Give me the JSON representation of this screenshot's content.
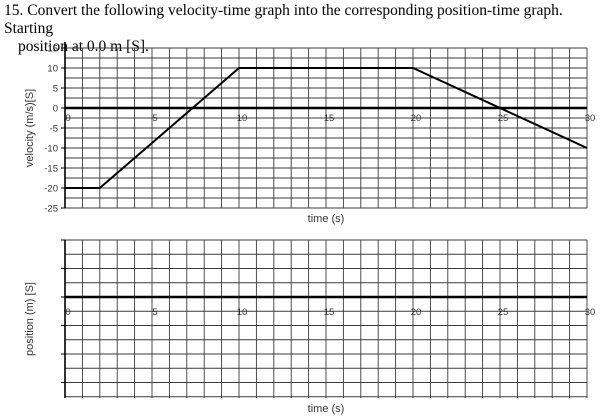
{
  "question": {
    "line1": "15. Convert the following velocity-time graph into the corresponding position-time graph. Starting",
    "line2": "position at 0.0 m [S]."
  },
  "chart_data": [
    {
      "type": "line",
      "title": "",
      "xlabel": "time (s)",
      "ylabel": "velocity (m/s)[S]",
      "xlim": [
        0,
        30
      ],
      "ylim": [
        -25,
        15
      ],
      "grid": true,
      "x_ticks": [
        "0",
        "5",
        "10",
        "15",
        "20",
        "25",
        "30"
      ],
      "y_ticks": [
        "15",
        "10",
        "5",
        "0",
        "-5",
        "-10",
        "-15",
        "-20",
        "-25"
      ],
      "series": [
        {
          "name": "velocity",
          "x": [
            0,
            2,
            10,
            20,
            30
          ],
          "y": [
            -20,
            -20,
            10,
            10,
            -10
          ]
        }
      ]
    },
    {
      "type": "line",
      "title": "",
      "xlabel": "time (s)",
      "ylabel": "position (m) [S]",
      "xlim": [
        0,
        30
      ],
      "grid": true,
      "x_ticks": [
        "0",
        "5",
        "10",
        "15",
        "20",
        "25",
        "30"
      ],
      "series": []
    }
  ]
}
